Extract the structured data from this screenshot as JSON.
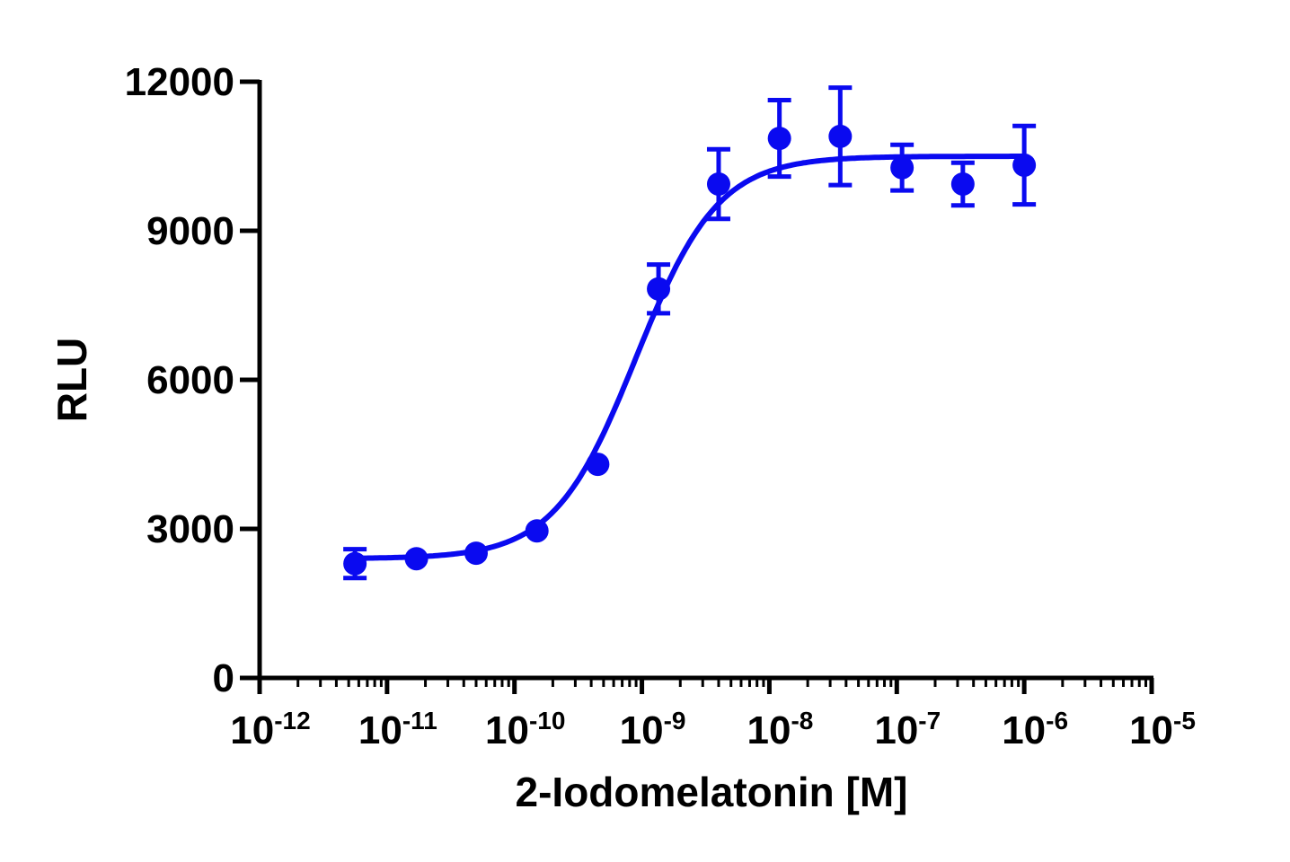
{
  "chart_data": {
    "type": "scatter",
    "title": "",
    "xlabel": "2-Iodomelatonin [M]",
    "ylabel": "RLU",
    "x_scale": "log",
    "xlim": [
      1e-12,
      1e-05
    ],
    "ylim": [
      0,
      12000
    ],
    "x_ticks": [
      {
        "base": "10",
        "exp": "-12"
      },
      {
        "base": "10",
        "exp": "-11"
      },
      {
        "base": "10",
        "exp": "-10"
      },
      {
        "base": "10",
        "exp": "-9"
      },
      {
        "base": "10",
        "exp": "-8"
      },
      {
        "base": "10",
        "exp": "-7"
      },
      {
        "base": "10",
        "exp": "-6"
      },
      {
        "base": "10",
        "exp": "-5"
      }
    ],
    "y_ticks": [
      "0",
      "3000",
      "6000",
      "9000",
      "12000"
    ],
    "grid": false,
    "color": "#0a0af0",
    "points": [
      {
        "x": 5.6e-12,
        "y": 2300,
        "err": 290
      },
      {
        "x": 1.7e-11,
        "y": 2400,
        "err": 0
      },
      {
        "x": 5e-11,
        "y": 2510,
        "err": 0
      },
      {
        "x": 1.5e-10,
        "y": 2960,
        "err": 0
      },
      {
        "x": 4.5e-10,
        "y": 4300,
        "err": 0
      },
      {
        "x": 1.35e-09,
        "y": 7830,
        "err": 490
      },
      {
        "x": 4e-09,
        "y": 9940,
        "err": 700
      },
      {
        "x": 1.2e-08,
        "y": 10860,
        "err": 770
      },
      {
        "x": 3.6e-08,
        "y": 10900,
        "err": 980
      },
      {
        "x": 1.1e-07,
        "y": 10270,
        "err": 460
      },
      {
        "x": 3.3e-07,
        "y": 9940,
        "err": 430
      },
      {
        "x": 1e-06,
        "y": 10320,
        "err": 790
      }
    ],
    "fit": {
      "model": "sigmoidal dose-response",
      "bottom": 2400,
      "top": 10500,
      "ec50": 9e-10,
      "hill": 1.35,
      "x_range": [
        5.6e-12,
        1e-06
      ]
    }
  }
}
